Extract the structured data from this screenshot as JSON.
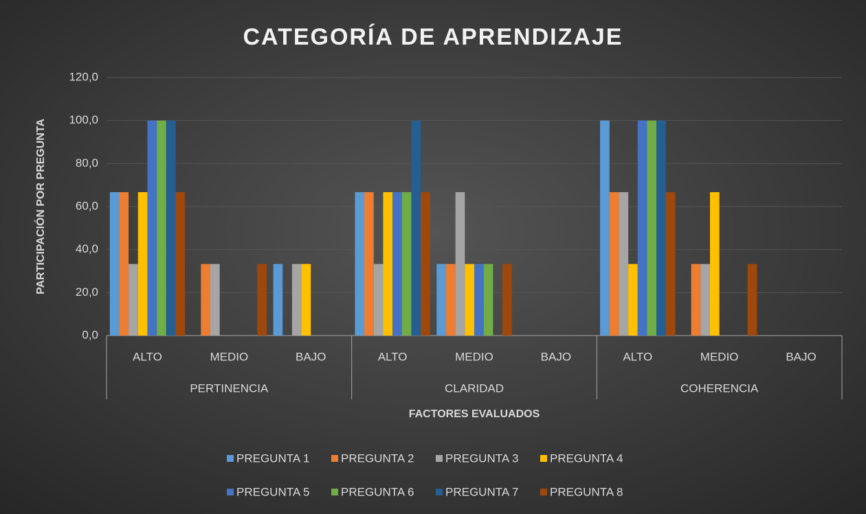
{
  "chart_data": {
    "type": "bar",
    "title": "CATEGORÍA DE APRENDIZAJE",
    "x_label": "FACTORES EVALUADOS",
    "y_label": "PARTICIPACIÓN POR PREGUNTA",
    "categories": [
      "ALTO",
      "MEDIO",
      "BAJO",
      "ALTO",
      "MEDIO",
      "BAJO",
      "ALTO",
      "MEDIO",
      "BAJO"
    ],
    "category_groups": [
      "PERTINENCIA",
      "CLARIDAD",
      "COHERENCIA"
    ],
    "series": [
      {
        "name": "PREGUNTA 1",
        "color": "#5b9bd5",
        "values": [
          66.7,
          0,
          33.3,
          66.7,
          33.3,
          0,
          100,
          0,
          0
        ]
      },
      {
        "name": "PREGUNTA 2",
        "color": "#ed7d31",
        "values": [
          66.7,
          33.3,
          0,
          66.7,
          33.3,
          0,
          66.7,
          33.3,
          0
        ]
      },
      {
        "name": "PREGUNTA 3",
        "color": "#a5a5a5",
        "values": [
          33.3,
          33.3,
          33.3,
          33.3,
          66.7,
          0,
          66.7,
          33.3,
          0
        ]
      },
      {
        "name": "PREGUNTA 4",
        "color": "#ffc000",
        "values": [
          66.7,
          0,
          33.3,
          66.7,
          33.3,
          0,
          33.3,
          66.7,
          0
        ]
      },
      {
        "name": "PREGUNTA 5",
        "color": "#4472c4",
        "values": [
          100,
          0,
          0,
          66.7,
          33.3,
          0,
          100,
          0,
          0
        ]
      },
      {
        "name": "PREGUNTA 6",
        "color": "#70ad47",
        "values": [
          100,
          0,
          0,
          66.7,
          33.3,
          0,
          100,
          0,
          0
        ]
      },
      {
        "name": "PREGUNTA 7",
        "color": "#255e91",
        "values": [
          100,
          0,
          0,
          100,
          0,
          0,
          100,
          0,
          0
        ]
      },
      {
        "name": "PREGUNTA 8",
        "color": "#9e480e",
        "values": [
          66.7,
          33.3,
          0,
          66.7,
          33.3,
          0,
          66.7,
          33.3,
          0
        ]
      }
    ],
    "ylim": [
      0,
      120
    ],
    "yticks": [
      {
        "value": 0,
        "label": "0,0"
      },
      {
        "value": 20,
        "label": "20,0"
      },
      {
        "value": 40,
        "label": "40,0"
      },
      {
        "value": 60,
        "label": "60,0"
      },
      {
        "value": 80,
        "label": "80,0"
      },
      {
        "value": 100,
        "label": "100,0"
      },
      {
        "value": 120,
        "label": "120,0"
      }
    ],
    "grid": true,
    "legend": "bottom"
  }
}
